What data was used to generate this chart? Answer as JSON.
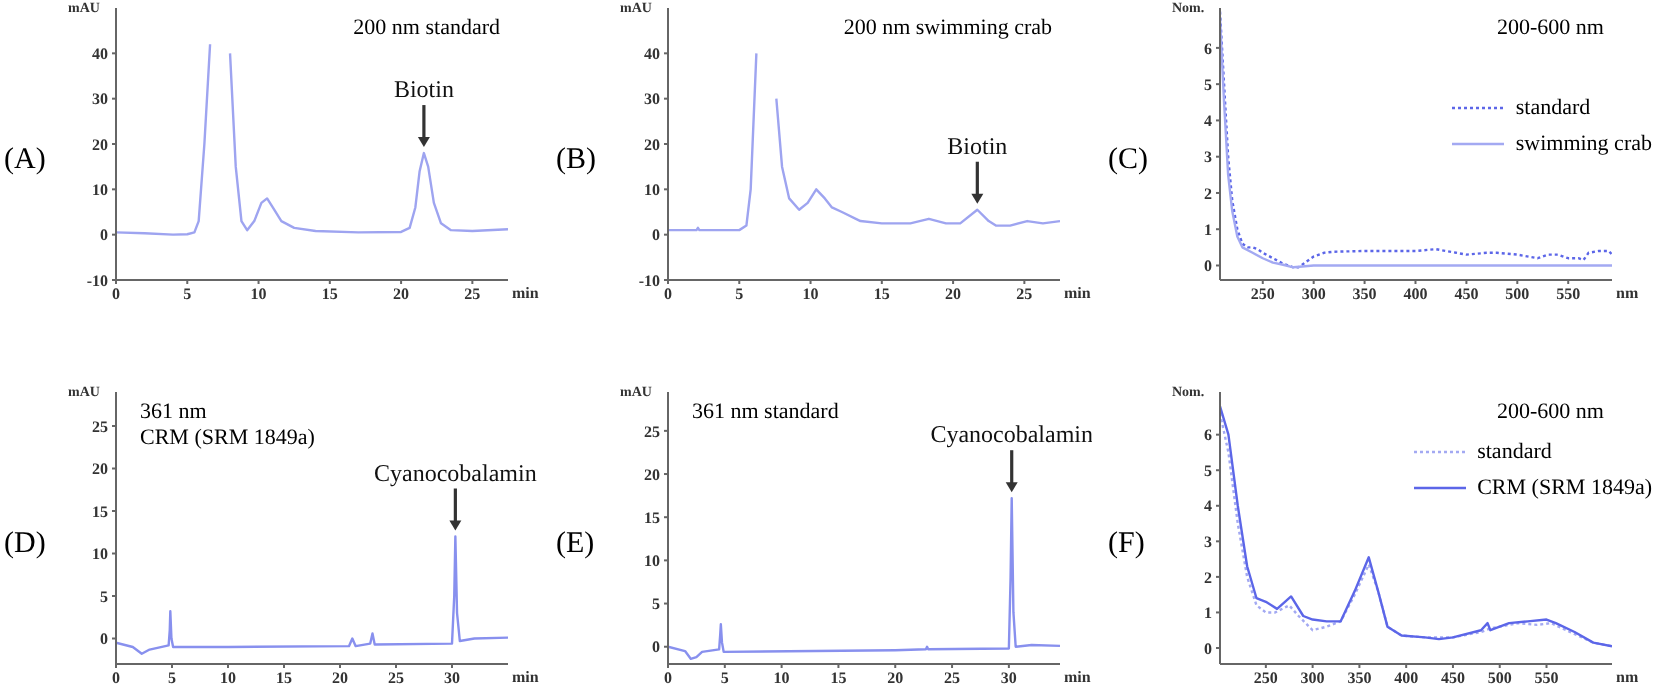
{
  "chart_data": [
    {
      "type": "line",
      "title": "(A)",
      "subtitle": "200 nm standard",
      "xlabel": "min",
      "ylabel": "mAU",
      "color": "#9ea4f0",
      "xlim": [
        0,
        27.5
      ],
      "ylim": [
        -10,
        50
      ],
      "xticks": [
        0,
        5,
        10,
        15,
        20,
        25
      ],
      "yticks": [
        -10,
        0,
        10,
        20,
        30,
        40
      ],
      "x": [
        0,
        2,
        4,
        5,
        5.5,
        5.8,
        6.2,
        6.6,
        7.0,
        7.7,
        8.0,
        8.4,
        8.8,
        9.2,
        9.7,
        10.2,
        10.6,
        11.0,
        11.6,
        12.5,
        14,
        17,
        20,
        20.6,
        21.0,
        21.3,
        21.6,
        21.9,
        22.3,
        22.8,
        23.5,
        25,
        27.5
      ],
      "values": [
        0.5,
        0.3,
        0,
        0.1,
        0.5,
        3,
        20,
        42,
        null,
        null,
        40,
        15,
        3,
        1,
        3,
        7,
        8,
        6,
        3,
        1.5,
        0.8,
        0.5,
        0.6,
        1.5,
        6,
        14,
        18,
        15,
        7,
        2.5,
        1,
        0.8,
        1.2
      ],
      "annotations": [
        {
          "text": "Biotin",
          "x": 21.6,
          "y": 18
        }
      ]
    },
    {
      "type": "line",
      "title": "(B)",
      "subtitle": "200 nm swimming crab",
      "xlabel": "min",
      "ylabel": "mAU",
      "color": "#9ea4f0",
      "xlim": [
        0,
        27.5
      ],
      "ylim": [
        -10,
        50
      ],
      "xticks": [
        0,
        5,
        10,
        15,
        20,
        25
      ],
      "yticks": [
        -10,
        0,
        10,
        20,
        30,
        40
      ],
      "x": [
        0,
        2,
        2.1,
        2.2,
        5,
        5.5,
        5.8,
        6.2,
        6.5,
        7.2,
        7.6,
        8.0,
        8.5,
        9.2,
        9.8,
        10.4,
        11.0,
        11.5,
        12.2,
        13.5,
        15,
        17,
        18.3,
        19.5,
        20.5,
        21.7,
        22.5,
        23,
        24,
        25.2,
        26.3,
        27.5
      ],
      "values": [
        1,
        1,
        1.5,
        1,
        1,
        2,
        10,
        40,
        null,
        null,
        30,
        15,
        8,
        5.5,
        7,
        10,
        8,
        6,
        5,
        3,
        2.5,
        2.5,
        3.5,
        2.5,
        2.5,
        5.5,
        3,
        2,
        2,
        3,
        2.5,
        3
      ],
      "annotations": [
        {
          "text": "Biotin",
          "x": 21.7,
          "y": 5.5
        }
      ]
    },
    {
      "type": "line",
      "title": "(C)",
      "subtitle": "200-600 nm",
      "xlabel": "nm",
      "ylabel": "Nom.",
      "xlim": [
        208,
        593
      ],
      "ylim": [
        -0.4,
        7.1
      ],
      "xticks": [
        250,
        300,
        350,
        400,
        450,
        500,
        550
      ],
      "yticks": [
        0,
        1,
        2,
        3,
        4,
        5,
        6
      ],
      "legend": "right",
      "series": [
        {
          "name": "standard",
          "color": "#5c66e8",
          "line_style": "dotted",
          "x": [
            208,
            212,
            216,
            220,
            225,
            230,
            235,
            240,
            245,
            250,
            260,
            270,
            280,
            285,
            290,
            300,
            310,
            320,
            350,
            380,
            400,
            420,
            440,
            450,
            470,
            480,
            500,
            520,
            530,
            540,
            550,
            560,
            565,
            570,
            580,
            590,
            593
          ],
          "values": [
            7,
            5,
            3,
            1.8,
            1,
            0.6,
            0.5,
            0.5,
            0.45,
            0.35,
            0.2,
            0.05,
            -0.05,
            -0.05,
            0.05,
            0.25,
            0.35,
            0.38,
            0.4,
            0.4,
            0.4,
            0.45,
            0.35,
            0.3,
            0.35,
            0.35,
            0.3,
            0.2,
            0.3,
            0.3,
            0.2,
            0.2,
            0.15,
            0.35,
            0.4,
            0.4,
            0.3
          ]
        },
        {
          "name": "swimming crab",
          "color": "#a3a9f2",
          "line_style": "solid",
          "x": [
            208,
            212,
            216,
            220,
            225,
            230,
            240,
            250,
            260,
            270,
            280,
            300,
            350,
            400,
            450,
            500,
            550,
            593
          ],
          "values": [
            6.8,
            4.5,
            2.5,
            1.5,
            0.8,
            0.5,
            0.35,
            0.2,
            0.08,
            0.02,
            -0.05,
            0,
            0,
            0,
            0,
            0,
            0,
            0
          ]
        }
      ]
    },
    {
      "type": "line",
      "title": "(D)",
      "subtitle": "361 nm\nCRM (SRM 1849a)",
      "xlabel": "min",
      "ylabel": "mAU",
      "color": "#8890ee",
      "xlim": [
        0,
        35
      ],
      "ylim": [
        -3,
        29
      ],
      "xticks": [
        0,
        5,
        10,
        15,
        20,
        25,
        30
      ],
      "yticks": [
        0,
        5,
        10,
        15,
        20,
        25
      ],
      "x": [
        0,
        1.5,
        2.3,
        3,
        4.7,
        4.8,
        4.85,
        4.95,
        5.1,
        10,
        20.8,
        21.1,
        21.4,
        22.7,
        22.9,
        23.1,
        30,
        30.2,
        30.3,
        30.45,
        30.7,
        32,
        35
      ],
      "values": [
        -0.5,
        -1,
        -1.8,
        -1.3,
        -0.8,
        1,
        3.2,
        0,
        -1,
        -1,
        -0.9,
        0,
        -0.9,
        -0.6,
        0.6,
        -0.7,
        -0.6,
        5,
        12,
        3,
        -0.3,
        0,
        0.1
      ],
      "annotations": [
        {
          "text": "Cyanocobalamin",
          "x": 30.3,
          "y": 12
        }
      ]
    },
    {
      "type": "line",
      "title": "(E)",
      "subtitle": "361 nm standard",
      "xlabel": "min",
      "ylabel": "mAU",
      "color": "#8890ee",
      "xlim": [
        0,
        34.5
      ],
      "ylim": [
        -2,
        29.5
      ],
      "xticks": [
        0,
        5,
        10,
        15,
        20,
        25,
        30
      ],
      "yticks": [
        0,
        5,
        10,
        15,
        20,
        25
      ],
      "x": [
        0,
        1.5,
        2,
        2.5,
        3,
        4.5,
        4.6,
        4.65,
        4.75,
        4.9,
        20,
        22.7,
        22.8,
        22.9,
        30,
        30.15,
        30.25,
        30.4,
        30.6,
        32,
        34.5
      ],
      "values": [
        0,
        -0.5,
        -1.4,
        -1.2,
        -0.6,
        -0.3,
        1.5,
        2.6,
        0.5,
        -0.6,
        -0.4,
        -0.3,
        0,
        -0.3,
        -0.2,
        8,
        17.2,
        4,
        0,
        0.2,
        0.1
      ],
      "annotations": [
        {
          "text": "Cyanocobalamin",
          "x": 30.25,
          "y": 17.2
        }
      ]
    },
    {
      "type": "line",
      "title": "(F)",
      "subtitle": "200-600 nm",
      "xlabel": "nm",
      "ylabel": "Nom.",
      "xlim": [
        201,
        620
      ],
      "ylim": [
        -0.45,
        7.2
      ],
      "xticks": [
        250,
        300,
        350,
        400,
        450,
        500,
        550
      ],
      "yticks": [
        0,
        1,
        2,
        3,
        4,
        5,
        6
      ],
      "legend": "right",
      "series": [
        {
          "name": "standard",
          "color": "#a3a9f2",
          "line_style": "dotted",
          "x": [
            201,
            210,
            220,
            230,
            240,
            250,
            260,
            275,
            285,
            300,
            315,
            330,
            345,
            360,
            370,
            380,
            395,
            420,
            450,
            480,
            490,
            500,
            520,
            540,
            555,
            575,
            600,
            620
          ],
          "values": [
            6.6,
            5.5,
            3.5,
            2,
            1.2,
            1.0,
            1.0,
            1.2,
            0.9,
            0.5,
            0.6,
            0.75,
            1.5,
            2.35,
            1.6,
            0.6,
            0.35,
            0.3,
            0.3,
            0.45,
            0.55,
            0.6,
            0.7,
            0.65,
            0.7,
            0.45,
            0.15,
            0.05
          ]
        },
        {
          "name": "CRM (SRM 1849a)",
          "color": "#5c66e8",
          "line_style": "solid",
          "x": [
            201,
            210,
            220,
            230,
            240,
            250,
            262,
            277,
            290,
            300,
            315,
            330,
            345,
            360,
            370,
            380,
            395,
            420,
            435,
            450,
            480,
            487,
            490,
            510,
            530,
            550,
            560,
            580,
            600,
            620
          ],
          "values": [
            6.8,
            6,
            4,
            2.3,
            1.4,
            1.3,
            1.1,
            1.45,
            0.9,
            0.8,
            0.75,
            0.75,
            1.6,
            2.55,
            1.6,
            0.6,
            0.35,
            0.3,
            0.25,
            0.3,
            0.5,
            0.7,
            0.5,
            0.7,
            0.75,
            0.8,
            0.7,
            0.45,
            0.15,
            0.05
          ]
        }
      ]
    }
  ]
}
